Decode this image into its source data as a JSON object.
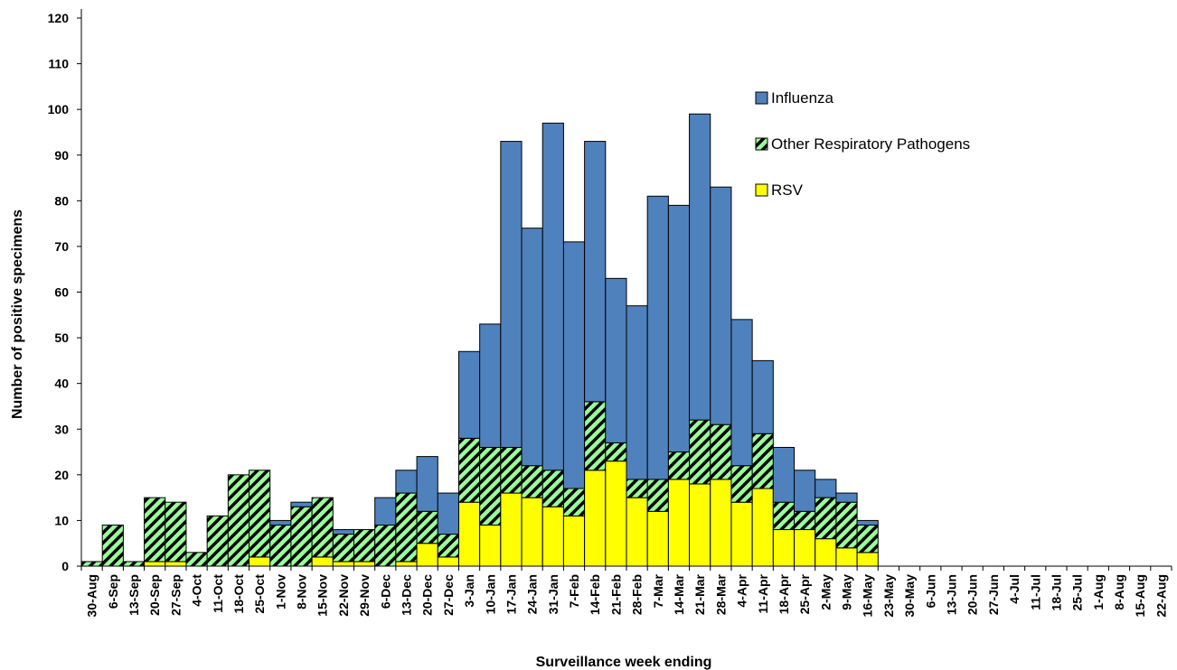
{
  "chart_data": {
    "type": "bar",
    "stacked": true,
    "title": "",
    "xlabel": "Surveillance week ending",
    "ylabel": "Number of positive specimens",
    "ylim": [
      0,
      120
    ],
    "yticks": [
      0,
      10,
      20,
      30,
      40,
      50,
      60,
      70,
      80,
      90,
      100,
      110,
      120
    ],
    "grid": false,
    "legend_position": "top-right",
    "categories": [
      "30-Aug",
      "6-Sep",
      "13-Sep",
      "20-Sep",
      "27-Sep",
      "4-Oct",
      "11-Oct",
      "18-Oct",
      "25-Oct",
      "1-Nov",
      "8-Nov",
      "15-Nov",
      "22-Nov",
      "29-Nov",
      "6-Dec",
      "13-Dec",
      "20-Dec",
      "27-Dec",
      "3-Jan",
      "10-Jan",
      "17-Jan",
      "24-Jan",
      "31-Jan",
      "7-Feb",
      "14-Feb",
      "21-Feb",
      "28-Feb",
      "7-Mar",
      "14-Mar",
      "21-Mar",
      "28-Mar",
      "4-Apr",
      "11-Apr",
      "18-Apr",
      "25-Apr",
      "2-May",
      "9-May",
      "16-May",
      "23-May",
      "30-May",
      "6-Jun",
      "13-Jun",
      "20-Jun",
      "27-Jun",
      "4-Jul",
      "11-Jul",
      "18-Jul",
      "25-Jul",
      "1-Aug",
      "8-Aug",
      "15-Aug",
      "22-Aug"
    ],
    "series": [
      {
        "name": "RSV",
        "color": "#ffff00",
        "pattern": "solid",
        "values": [
          0,
          0,
          0,
          1,
          1,
          0,
          0,
          0,
          2,
          0,
          0,
          2,
          1,
          1,
          0,
          1,
          5,
          2,
          14,
          9,
          16,
          15,
          13,
          11,
          21,
          23,
          15,
          12,
          19,
          18,
          19,
          14,
          17,
          8,
          8,
          6,
          4,
          3,
          0,
          0,
          0,
          0,
          0,
          0,
          0,
          0,
          0,
          0,
          0,
          0,
          0,
          0
        ]
      },
      {
        "name": "Other Respiratory Pathogens",
        "color": "#99ff99",
        "pattern": "diagonal-stripes",
        "values": [
          1,
          9,
          1,
          14,
          13,
          3,
          11,
          20,
          19,
          9,
          13,
          13,
          6,
          7,
          9,
          15,
          7,
          5,
          14,
          17,
          10,
          7,
          8,
          6,
          15,
          4,
          4,
          7,
          6,
          14,
          12,
          8,
          12,
          6,
          4,
          9,
          10,
          6,
          0,
          0,
          0,
          0,
          0,
          0,
          0,
          0,
          0,
          0,
          0,
          0,
          0,
          0
        ]
      },
      {
        "name": "Influenza",
        "color": "#4f81bd",
        "pattern": "solid",
        "values": [
          0,
          0,
          0,
          0,
          0,
          0,
          0,
          0,
          0,
          1,
          1,
          0,
          1,
          0,
          6,
          5,
          12,
          9,
          19,
          27,
          67,
          52,
          76,
          54,
          57,
          36,
          38,
          62,
          54,
          67,
          52,
          32,
          16,
          12,
          9,
          4,
          2,
          1,
          0,
          0,
          0,
          0,
          0,
          0,
          0,
          0,
          0,
          0,
          0,
          0,
          0,
          0
        ]
      }
    ]
  }
}
